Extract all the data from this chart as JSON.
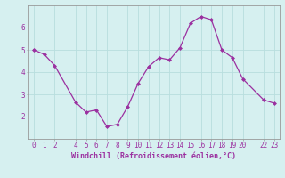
{
  "x": [
    0,
    1,
    2,
    4,
    5,
    6,
    7,
    8,
    9,
    10,
    11,
    12,
    13,
    14,
    15,
    16,
    17,
    18,
    19,
    20,
    22,
    23
  ],
  "y": [
    5.0,
    4.8,
    4.3,
    2.65,
    2.2,
    2.3,
    1.55,
    1.65,
    2.45,
    3.5,
    4.25,
    4.65,
    4.55,
    5.1,
    6.2,
    6.5,
    6.35,
    5.0,
    4.65,
    3.7,
    2.75,
    2.6
  ],
  "line_color": "#9b30a0",
  "marker_color": "#9b30a0",
  "bg_color": "#d6f0f0",
  "grid_color": "#b8dede",
  "axis_color": "#9b30a0",
  "xlabel": "Windchill (Refroidissement éolien,°C)",
  "xlabel_fontsize": 6.0,
  "tick_fontsize": 5.5,
  "ylim": [
    1.0,
    7.0
  ],
  "xlim": [
    -0.5,
    23.5
  ],
  "yticks": [
    2,
    3,
    4,
    5,
    6
  ],
  "xticks": [
    0,
    1,
    2,
    4,
    5,
    6,
    7,
    8,
    9,
    10,
    11,
    12,
    13,
    14,
    15,
    16,
    17,
    18,
    19,
    20,
    22,
    23
  ]
}
